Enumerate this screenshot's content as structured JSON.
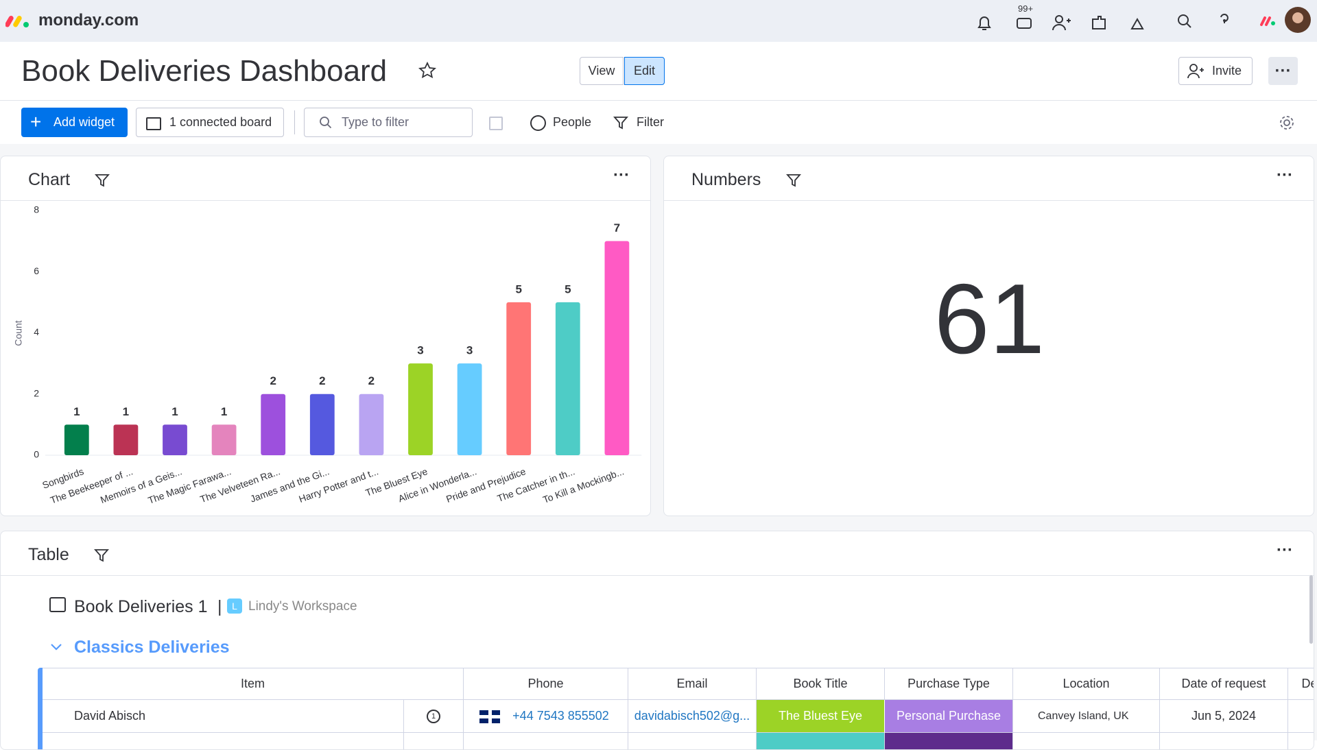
{
  "header": {
    "logo": "monday.com",
    "notification_badge": "99+"
  },
  "dashboard": {
    "title": "Book Deliveries Dashboard",
    "view_button": "View",
    "edit_button": "Edit",
    "invite_button": "Invite"
  },
  "toolbar": {
    "add_widget": "Add widget",
    "connected_boards": "1 connected board",
    "filter_placeholder": "Type to filter",
    "people": "People",
    "filter": "Filter"
  },
  "chart_data": {
    "type": "bar",
    "title": "Chart",
    "y_label": "Count",
    "categories": [
      "Songbirds",
      "The Beekeeper of ...",
      "Memoirs of a Geis...",
      "The Magic Farawa...",
      "The Velveteen Ra...",
      "James and the Gi...",
      "Harry Potter and t...",
      "The Bluest Eye",
      "Alice in Wonderla...",
      "Pride and Prejudice",
      "The Catcher in th...",
      "To Kill a Mockingb..."
    ],
    "values": [
      1,
      1,
      1,
      1,
      2,
      2,
      2,
      3,
      3,
      5,
      5,
      7
    ],
    "colors": [
      "#037f4c",
      "#bb3354",
      "#784bd1",
      "#e484bd",
      "#9d50dd",
      "#5559df",
      "#b9a4f2",
      "#9cd326",
      "#66ccff",
      "#ff7575",
      "#4eccc6",
      "#ff5ac4"
    ],
    "ylim": [
      0,
      8
    ],
    "yticks": [
      0,
      2,
      4,
      6,
      8
    ],
    "grid": false
  },
  "numbers_widget": {
    "title": "Numbers",
    "value": 61
  },
  "table_widget": {
    "title": "Table",
    "board": "Book Deliveries 1",
    "workspace_initial": "L",
    "workspace": "Lindy's Workspace",
    "group": "Classics Deliveries",
    "columns": [
      "Item",
      "Phone",
      "Email",
      "Book Title",
      "Purchase Type",
      "Location",
      "Date of request",
      "De"
    ],
    "rows": [
      {
        "item": "David Abisch",
        "updates": 1,
        "phone": "+44 7543 855502",
        "email": "davidabisch502@g...",
        "book_title": "The Bluest Eye",
        "purchase_type": "Personal Purchase",
        "location": "Canvey Island, UK",
        "date": "Jun 5, 2024"
      }
    ]
  }
}
